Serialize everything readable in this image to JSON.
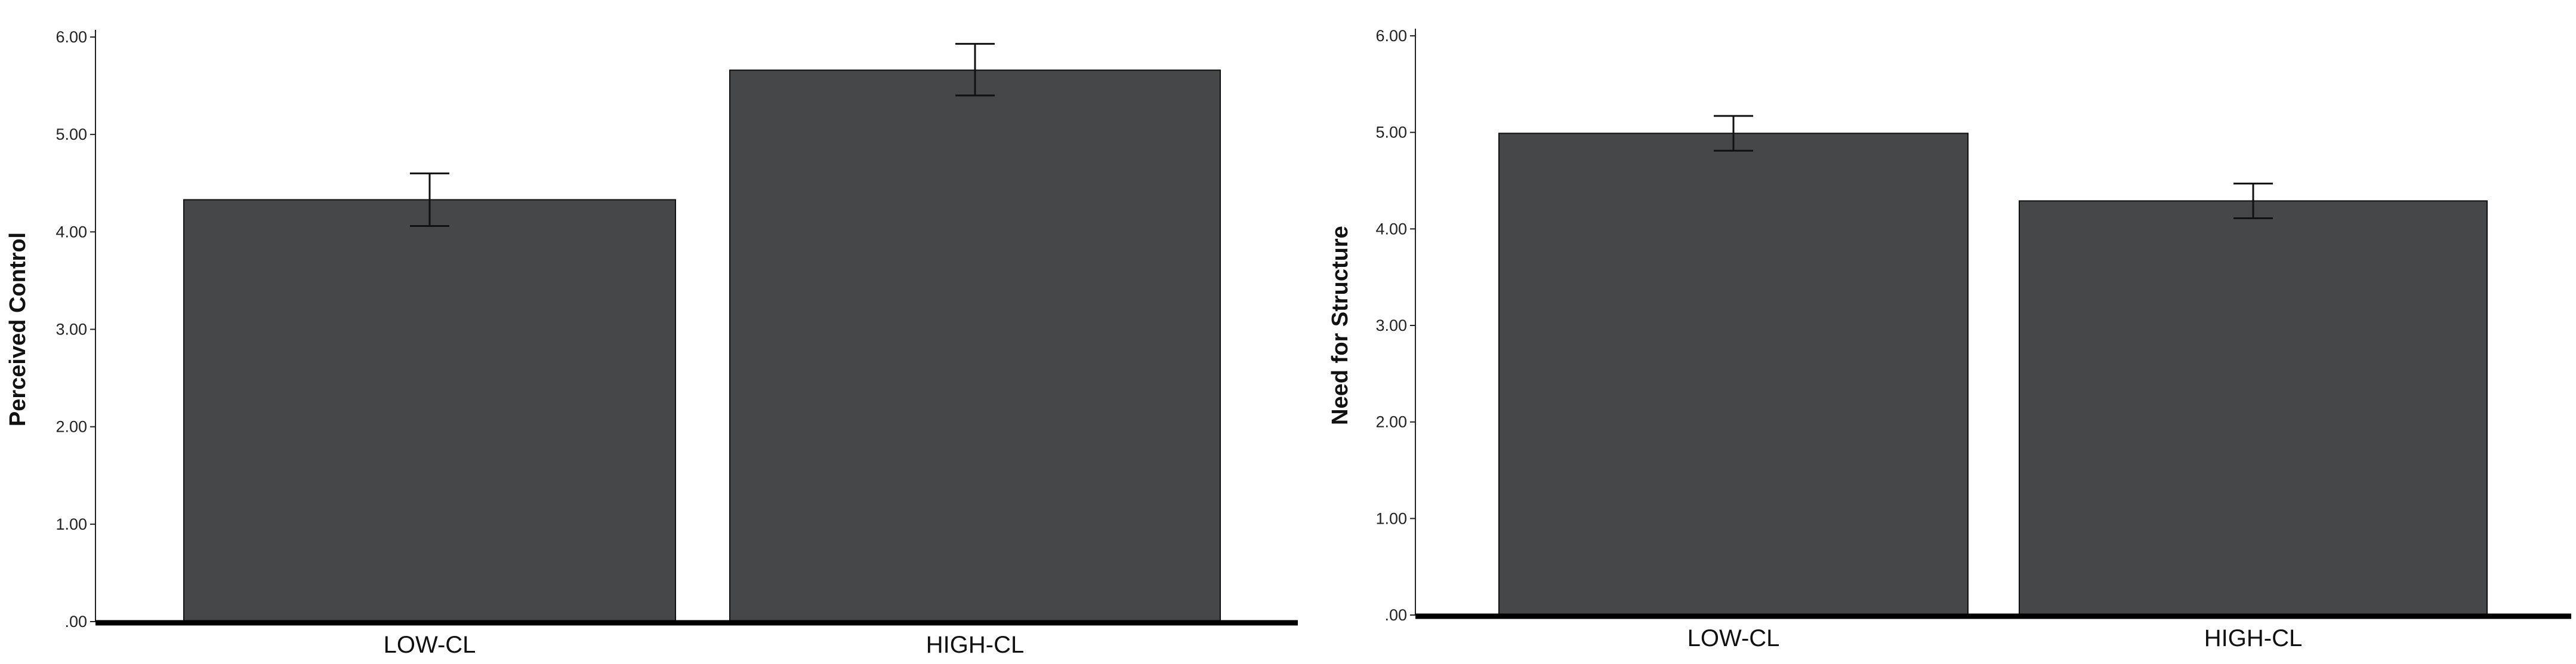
{
  "chart_data": [
    {
      "type": "bar",
      "title": "",
      "xlabel": "",
      "ylabel": "Perceived Control",
      "categories": [
        "LOW-CL",
        "HIGH-CL"
      ],
      "values": [
        4.33,
        5.66
      ],
      "error_low": [
        4.06,
        5.4
      ],
      "error_high": [
        4.6,
        5.93
      ],
      "ylim": [
        0,
        6.0
      ],
      "yticks": [
        0,
        1,
        2,
        3,
        4,
        5,
        6
      ],
      "yticklabels": [
        ".00",
        "1.00",
        "2.00",
        "3.00",
        "4.00",
        "5.00",
        "6.00"
      ],
      "grid": false,
      "bar_color": "#464749"
    },
    {
      "type": "bar",
      "title": "",
      "xlabel": "",
      "ylabel": "Need for Structure",
      "categories": [
        "LOW-CL",
        "HIGH-CL"
      ],
      "values": [
        4.99,
        4.29
      ],
      "error_low": [
        4.81,
        4.11
      ],
      "error_high": [
        5.17,
        4.47
      ],
      "ylim": [
        0,
        6.0
      ],
      "yticks": [
        0,
        1,
        2,
        3,
        4,
        5,
        6
      ],
      "yticklabels": [
        ".00",
        "1.00",
        "2.00",
        "3.00",
        "4.00",
        "5.00",
        "6.00"
      ],
      "grid": false,
      "bar_color": "#464749"
    }
  ]
}
